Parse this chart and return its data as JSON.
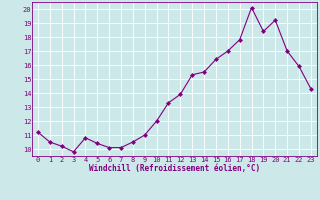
{
  "x": [
    0,
    1,
    2,
    3,
    4,
    5,
    6,
    7,
    8,
    9,
    10,
    11,
    12,
    13,
    14,
    15,
    16,
    17,
    18,
    19,
    20,
    21,
    22,
    23
  ],
  "y": [
    11.2,
    10.5,
    10.2,
    9.8,
    10.8,
    10.4,
    10.1,
    10.1,
    10.5,
    11.0,
    12.0,
    13.3,
    13.9,
    15.3,
    15.5,
    16.4,
    17.0,
    17.8,
    20.1,
    18.4,
    19.2,
    17.0,
    15.9,
    14.3
  ],
  "line_color": "#800080",
  "marker": "D",
  "marker_size": 2.0,
  "bg_color": "#cce8e8",
  "grid_color": "#b0d8d8",
  "xlabel": "Windchill (Refroidissement éolien,°C)",
  "ylabel_ticks": [
    10,
    11,
    12,
    13,
    14,
    15,
    16,
    17,
    18,
    19,
    20
  ],
  "xlim": [
    -0.5,
    23.5
  ],
  "ylim": [
    9.5,
    20.5
  ],
  "tick_fontsize": 5.0,
  "xlabel_fontsize": 5.5
}
